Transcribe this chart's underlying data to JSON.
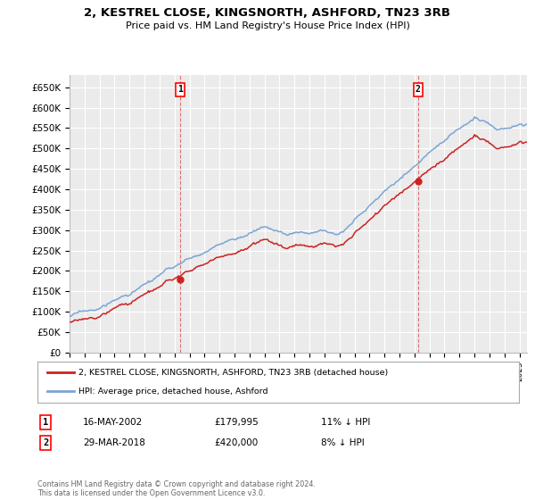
{
  "title": "2, KESTREL CLOSE, KINGSNORTH, ASHFORD, TN23 3RB",
  "subtitle": "Price paid vs. HM Land Registry's House Price Index (HPI)",
  "ylim": [
    0,
    680000
  ],
  "yticks": [
    0,
    50000,
    100000,
    150000,
    200000,
    250000,
    300000,
    350000,
    400000,
    450000,
    500000,
    550000,
    600000,
    650000
  ],
  "ytick_labels": [
    "£0",
    "£50K",
    "£100K",
    "£150K",
    "£200K",
    "£250K",
    "£300K",
    "£350K",
    "£400K",
    "£450K",
    "£500K",
    "£550K",
    "£600K",
    "£650K"
  ],
  "background_color": "#ffffff",
  "plot_bg_color": "#ebebeb",
  "grid_color": "#ffffff",
  "hpi_color": "#7aa6d4",
  "price_color": "#cc2222",
  "sale1_year": 2002.37,
  "sale1_price": 179995,
  "sale1_label": "1",
  "sale1_date": "16-MAY-2002",
  "sale1_hpi_text": "11% ↓ HPI",
  "sale2_year": 2018.24,
  "sale2_price": 420000,
  "sale2_label": "2",
  "sale2_date": "29-MAR-2018",
  "sale2_hpi_text": "8% ↓ HPI",
  "legend_line1": "2, KESTREL CLOSE, KINGSNORTH, ASHFORD, TN23 3RB (detached house)",
  "legend_line2": "HPI: Average price, detached house, Ashford",
  "footer": "Contains HM Land Registry data © Crown copyright and database right 2024.\nThis data is licensed under the Open Government Licence v3.0.",
  "xmin": 1995,
  "xmax": 2025.5,
  "vline1_x": 2002.37,
  "vline2_x": 2018.24
}
